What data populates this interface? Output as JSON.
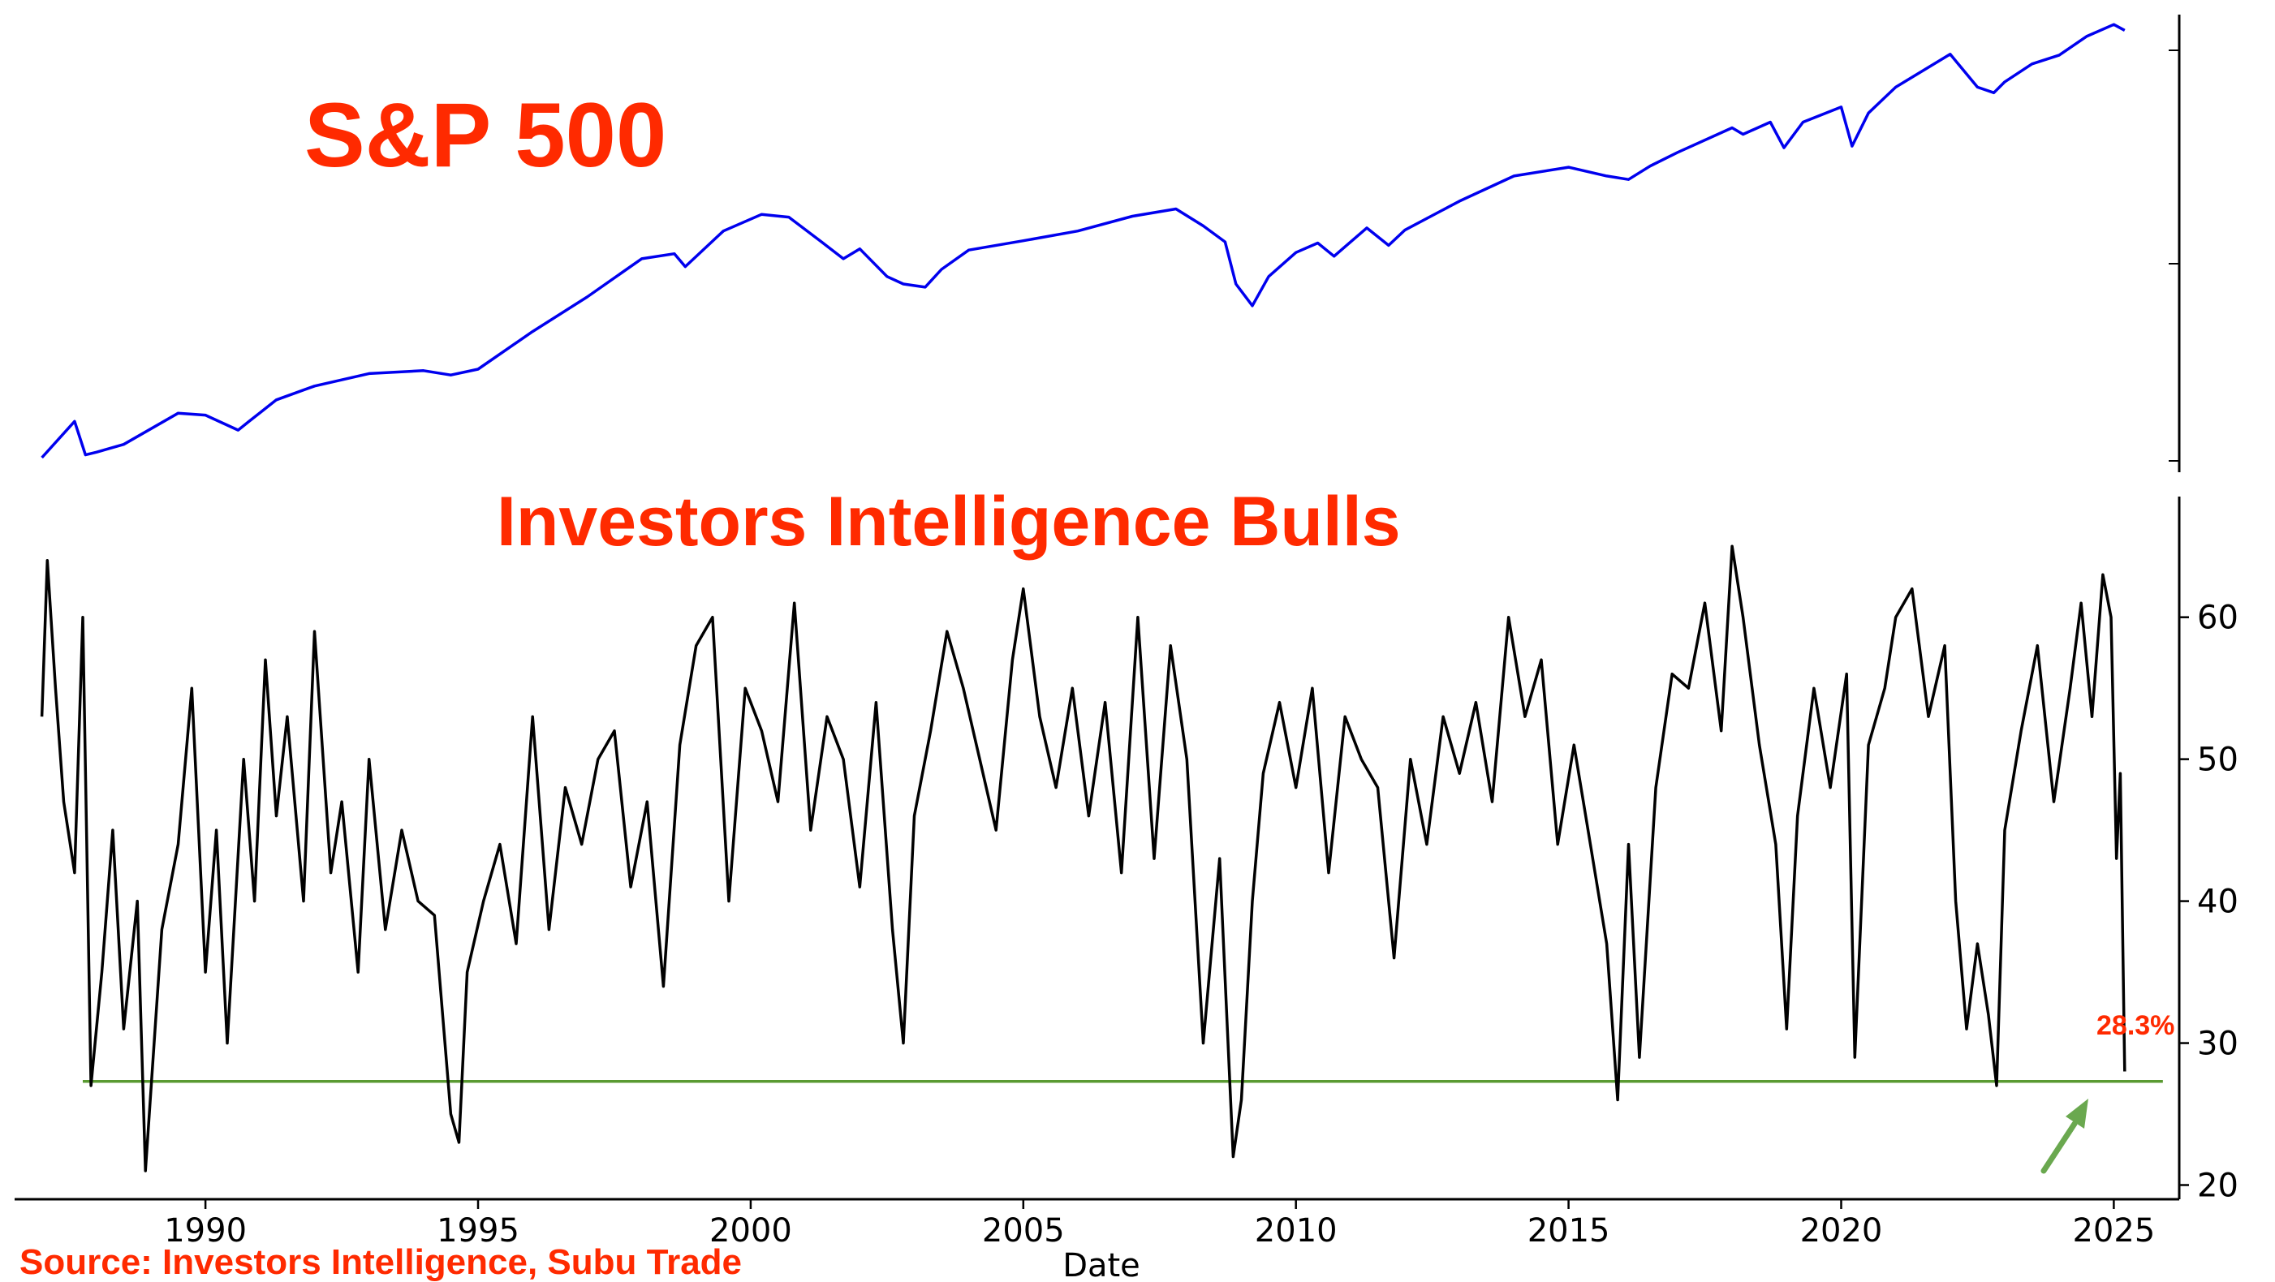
{
  "colors": {
    "sp500_line": "#0000ee",
    "bulls_line": "#000000",
    "threshold_line": "#5a9a32",
    "arrow": "#6aa84f",
    "title": "#ff2a00",
    "annotation": "#ff2a00",
    "source": "#ff2a00"
  },
  "chart_data": [
    {
      "type": "line",
      "title": "S&P 500",
      "yscale": "log",
      "xlim": [
        1986.5,
        2026.2
      ],
      "ylim": [
        220,
        6400
      ],
      "yticks": [],
      "grid": false,
      "series": [
        {
          "x": [
            1987.0,
            1987.6,
            1987.8,
            1988.0,
            1988.5,
            1989.5,
            1990.0,
            1990.6,
            1990.8,
            1991.3,
            1992.0,
            1993.0,
            1994.0,
            1994.5,
            1995.0,
            1996.0,
            1997.0,
            1998.0,
            1998.6,
            1998.8,
            1999.5,
            2000.2,
            2000.7,
            2001.3,
            2001.7,
            2002.0,
            2002.5,
            2002.8,
            2003.2,
            2003.5,
            2004.0,
            2005.0,
            2006.0,
            2007.0,
            2007.8,
            2008.3,
            2008.7,
            2008.9,
            2009.2,
            2009.5,
            2010.0,
            2010.4,
            2010.7,
            2011.3,
            2011.7,
            2012.0,
            2013.0,
            2014.0,
            2015.0,
            2015.7,
            2016.1,
            2016.5,
            2017.0,
            2018.0,
            2018.2,
            2018.7,
            2018.95,
            2019.3,
            2020.0,
            2020.2,
            2020.5,
            2021.0,
            2022.0,
            2022.5,
            2022.8,
            2023.0,
            2023.5,
            2024.0,
            2024.5,
            2025.0,
            2025.2
          ],
          "y": [
            245,
            320,
            250,
            255,
            270,
            340,
            335,
            300,
            320,
            375,
            415,
            455,
            465,
            450,
            470,
            620,
            800,
            1060,
            1100,
            1000,
            1300,
            1470,
            1440,
            1200,
            1060,
            1140,
            930,
            880,
            860,
            980,
            1130,
            1210,
            1300,
            1450,
            1530,
            1350,
            1200,
            880,
            750,
            930,
            1110,
            1190,
            1080,
            1330,
            1170,
            1310,
            1620,
            1950,
            2080,
            1950,
            1900,
            2100,
            2320,
            2780,
            2650,
            2900,
            2400,
            2900,
            3240,
            2430,
            3100,
            3750,
            4780,
            3750,
            3600,
            3900,
            4450,
            4750,
            5450,
            5950,
            5700
          ]
        }
      ]
    },
    {
      "type": "line",
      "title": "Investors Intelligence Bulls",
      "xlabel": "Date",
      "xlim": [
        1986.5,
        2026.2
      ],
      "ylim": [
        19,
        68.5
      ],
      "xticks": [
        1990,
        1995,
        2000,
        2005,
        2010,
        2015,
        2020,
        2025
      ],
      "yticks": [
        20,
        30,
        40,
        50,
        60
      ],
      "grid": false,
      "threshold": 27.3,
      "annotation": "28.3%",
      "series": [
        {
          "x": [
            1987.0,
            1987.1,
            1987.25,
            1987.4,
            1987.6,
            1987.75,
            1987.9,
            1988.1,
            1988.3,
            1988.5,
            1988.75,
            1988.9,
            1989.2,
            1989.5,
            1989.75,
            1990.0,
            1990.2,
            1990.4,
            1990.7,
            1990.9,
            1991.1,
            1991.3,
            1991.5,
            1991.8,
            1992.0,
            1992.3,
            1992.5,
            1992.8,
            1993.0,
            1993.3,
            1993.6,
            1993.9,
            1994.2,
            1994.5,
            1994.65,
            1994.8,
            1995.1,
            1995.4,
            1995.7,
            1996.0,
            1996.3,
            1996.6,
            1996.9,
            1997.2,
            1997.5,
            1997.8,
            1998.1,
            1998.4,
            1998.7,
            1999.0,
            1999.3,
            1999.6,
            1999.9,
            2000.2,
            2000.5,
            2000.8,
            2001.1,
            2001.4,
            2001.7,
            2002.0,
            2002.3,
            2002.6,
            2002.8,
            2003.0,
            2003.3,
            2003.6,
            2003.9,
            2004.2,
            2004.5,
            2004.8,
            2005.0,
            2005.3,
            2005.6,
            2005.9,
            2006.2,
            2006.5,
            2006.8,
            2007.1,
            2007.4,
            2007.7,
            2008.0,
            2008.3,
            2008.6,
            2008.85,
            2009.0,
            2009.2,
            2009.4,
            2009.7,
            2010.0,
            2010.3,
            2010.6,
            2010.9,
            2011.2,
            2011.5,
            2011.8,
            2012.1,
            2012.4,
            2012.7,
            2013.0,
            2013.3,
            2013.6,
            2013.9,
            2014.2,
            2014.5,
            2014.8,
            2015.1,
            2015.4,
            2015.7,
            2015.9,
            2016.1,
            2016.3,
            2016.6,
            2016.9,
            2017.2,
            2017.5,
            2017.8,
            2018.0,
            2018.2,
            2018.5,
            2018.8,
            2019.0,
            2019.2,
            2019.5,
            2019.8,
            2020.1,
            2020.25,
            2020.5,
            2020.8,
            2021.0,
            2021.3,
            2021.6,
            2021.9,
            2022.1,
            2022.3,
            2022.5,
            2022.7,
            2022.85,
            2023.0,
            2023.3,
            2023.6,
            2023.9,
            2024.2,
            2024.4,
            2024.6,
            2024.8,
            2024.95,
            2025.05,
            2025.12,
            2025.2
          ],
          "y": [
            53,
            64,
            55,
            47,
            42,
            60,
            27,
            35,
            45,
            31,
            40,
            21,
            38,
            44,
            55,
            35,
            45,
            30,
            50,
            40,
            57,
            46,
            53,
            40,
            59,
            42,
            47,
            35,
            50,
            38,
            45,
            40,
            39,
            25,
            23,
            35,
            40,
            44,
            37,
            53,
            38,
            48,
            44,
            50,
            52,
            41,
            47,
            34,
            51,
            58,
            60,
            40,
            55,
            52,
            47,
            61,
            45,
            53,
            50,
            41,
            54,
            38,
            30,
            46,
            52,
            59,
            55,
            50,
            45,
            57,
            62,
            53,
            48,
            55,
            46,
            54,
            42,
            60,
            43,
            58,
            50,
            30,
            43,
            22,
            26,
            40,
            49,
            54,
            48,
            55,
            42,
            53,
            50,
            48,
            36,
            50,
            44,
            53,
            49,
            54,
            47,
            60,
            53,
            57,
            44,
            51,
            44,
            37,
            26,
            44,
            29,
            48,
            56,
            55,
            61,
            52,
            65,
            60,
            51,
            44,
            31,
            46,
            55,
            48,
            56,
            29,
            51,
            55,
            60,
            62,
            53,
            58,
            40,
            31,
            37,
            32,
            27,
            45,
            52,
            58,
            47,
            55,
            61,
            53,
            63,
            60,
            43,
            49,
            28
          ]
        }
      ]
    }
  ],
  "source": "Source: Investors Intelligence, Subu Trade"
}
